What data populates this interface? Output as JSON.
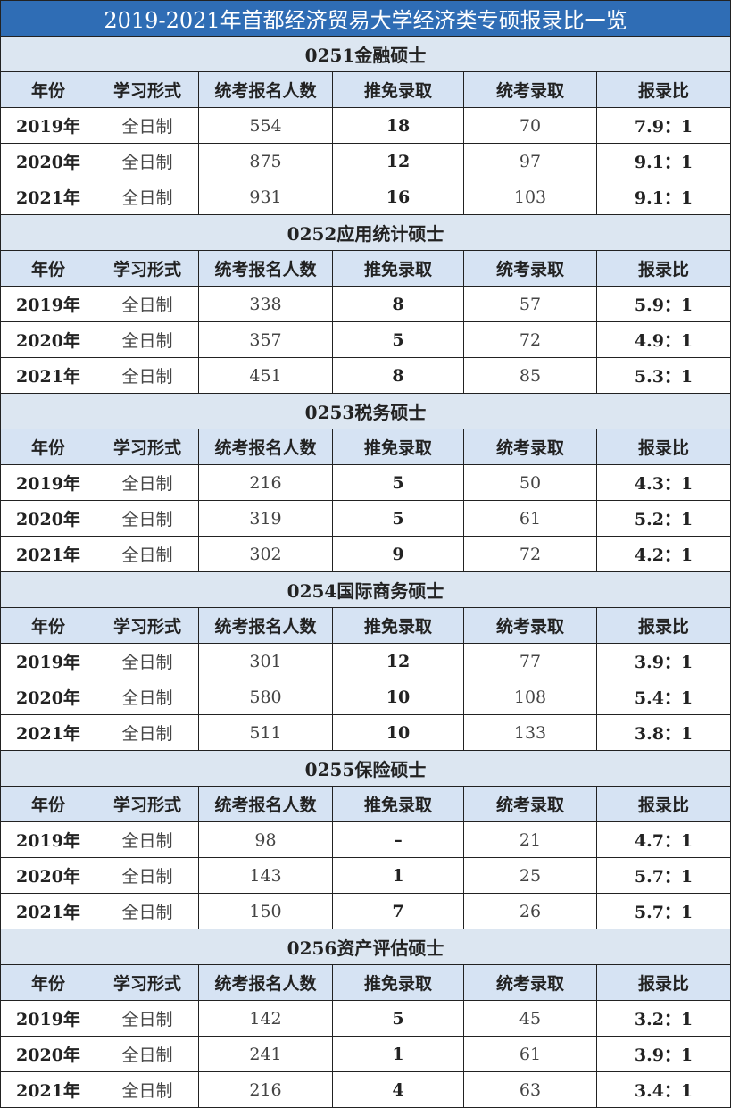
{
  "title": "2019-2021年首都经济贸易大学经济类专硕报录比一览",
  "headers": [
    "年份",
    "学习形式",
    "统考报名人数",
    "推免录取",
    "统考录取",
    "报录比"
  ],
  "colors": {
    "title_bg": "#2f6db5",
    "section_bg": "#dce6f1",
    "header_bg": "#d6e3f3"
  },
  "sections": [
    {
      "name": "0251金融硕士",
      "rows": [
        [
          "2019年",
          "全日制",
          "554",
          "18",
          "70",
          "7.9：1"
        ],
        [
          "2020年",
          "全日制",
          "875",
          "12",
          "97",
          "9.1：1"
        ],
        [
          "2021年",
          "全日制",
          "931",
          "16",
          "103",
          "9.1：1"
        ]
      ]
    },
    {
      "name": "0252应用统计硕士",
      "rows": [
        [
          "2019年",
          "全日制",
          "338",
          "8",
          "57",
          "5.9：1"
        ],
        [
          "2020年",
          "全日制",
          "357",
          "5",
          "72",
          "4.9：1"
        ],
        [
          "2021年",
          "全日制",
          "451",
          "8",
          "85",
          "5.3：1"
        ]
      ]
    },
    {
      "name": "0253税务硕士",
      "rows": [
        [
          "2019年",
          "全日制",
          "216",
          "5",
          "50",
          "4.3：1"
        ],
        [
          "2020年",
          "全日制",
          "319",
          "5",
          "61",
          "5.2：1"
        ],
        [
          "2021年",
          "全日制",
          "302",
          "9",
          "72",
          "4.2：1"
        ]
      ]
    },
    {
      "name": "0254国际商务硕士",
      "rows": [
        [
          "2019年",
          "全日制",
          "301",
          "12",
          "77",
          "3.9：1"
        ],
        [
          "2020年",
          "全日制",
          "580",
          "10",
          "108",
          "5.4：1"
        ],
        [
          "2021年",
          "全日制",
          "511",
          "10",
          "133",
          "3.8：1"
        ]
      ]
    },
    {
      "name": "0255保险硕士",
      "rows": [
        [
          "2019年",
          "全日制",
          "98",
          "–",
          "21",
          "4.7：1"
        ],
        [
          "2020年",
          "全日制",
          "143",
          "1",
          "25",
          "5.7：1"
        ],
        [
          "2021年",
          "全日制",
          "150",
          "7",
          "26",
          "5.7：1"
        ]
      ]
    },
    {
      "name": "0256资产评估硕士",
      "rows": [
        [
          "2019年",
          "全日制",
          "142",
          "5",
          "45",
          "3.2：1"
        ],
        [
          "2020年",
          "全日制",
          "241",
          "1",
          "61",
          "3.9：1"
        ],
        [
          "2021年",
          "全日制",
          "216",
          "4",
          "63",
          "3.4：1"
        ]
      ]
    }
  ]
}
